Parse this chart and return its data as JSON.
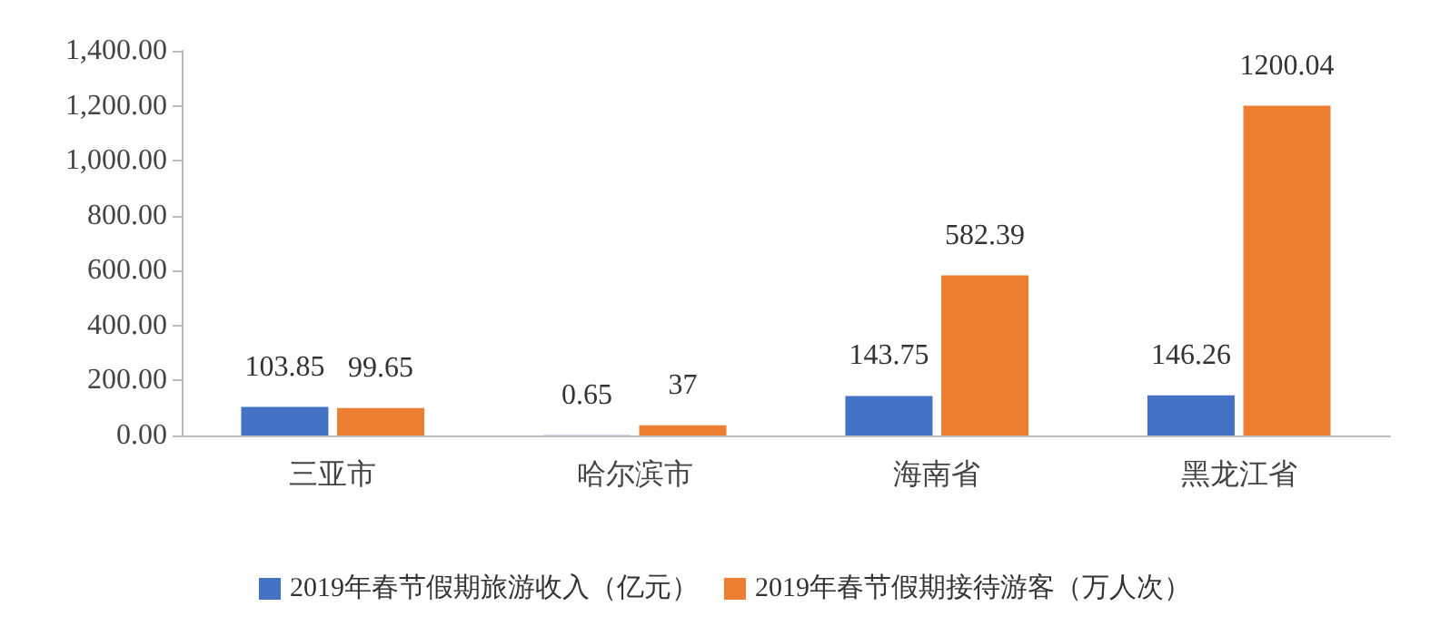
{
  "chart_data": {
    "type": "bar",
    "categories": [
      "三亚市",
      "哈尔滨市",
      "海南省",
      "黑龙江省"
    ],
    "series": [
      {
        "name": "2019年春节假期旅游收入（亿元）",
        "color": "#4472c4",
        "values": [
          103.85,
          0.65,
          143.75,
          146.26
        ]
      },
      {
        "name": "2019年春节假期接待游客（万人次）",
        "color": "#ed7d31",
        "values": [
          99.65,
          37,
          582.39,
          1200.04
        ]
      }
    ],
    "ylim": [
      0,
      1400
    ],
    "yticks": [
      {
        "value": 0,
        "label": "0.00"
      },
      {
        "value": 200,
        "label": "200.00"
      },
      {
        "value": 400,
        "label": "400.00"
      },
      {
        "value": 600,
        "label": "600.00"
      },
      {
        "value": 800,
        "label": "800.00"
      },
      {
        "value": 1000,
        "label": "1,000.00"
      },
      {
        "value": 1200,
        "label": "1,200.00"
      },
      {
        "value": 1400,
        "label": "1,400.00"
      }
    ],
    "data_labels": true,
    "grid": false,
    "legend": "bottom"
  }
}
